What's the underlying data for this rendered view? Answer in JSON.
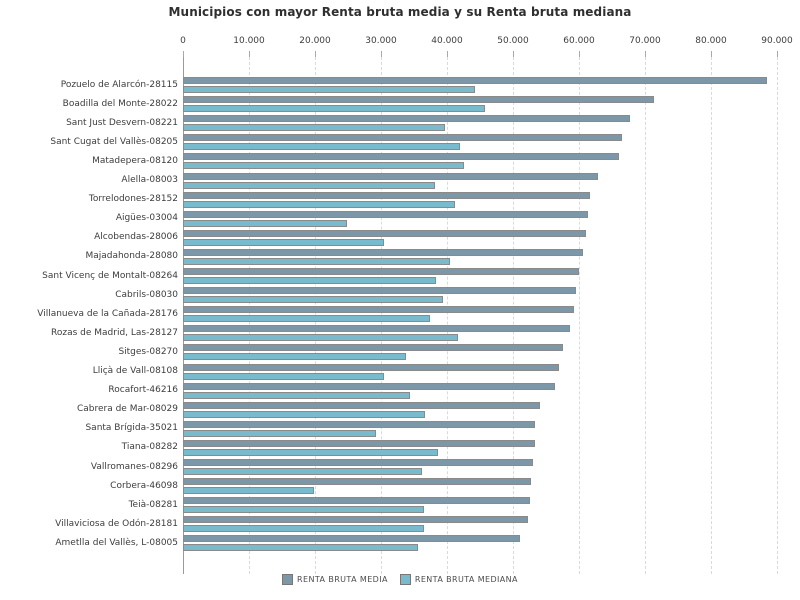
{
  "title": "Municipios con mayor Renta bruta media y su Renta bruta mediana",
  "colors": {
    "media": "#7b97a8",
    "mediana": "#7abacd",
    "bar_border": "#8a8a8a",
    "gridline": "#dadada",
    "axis_line": "#9a9a9a",
    "text": "#3d3d3d"
  },
  "legend": {
    "position": "bottom",
    "items": [
      {
        "label": "RENTA BRUTA MEDIA",
        "color_key": "media"
      },
      {
        "label": "RENTA BRUTA MEDIANA",
        "color_key": "mediana"
      }
    ]
  },
  "chart_data": {
    "type": "bar",
    "orientation": "horizontal",
    "title": "Municipios con mayor Renta bruta media y su Renta bruta mediana",
    "x_axis": {
      "position": "top",
      "min": 0,
      "max": 90000,
      "tick_interval": 10000,
      "tick_labels": [
        "0",
        "10.000",
        "20.000",
        "30.000",
        "40.000",
        "50.000",
        "60.000",
        "70.000",
        "80.000",
        "90.000"
      ],
      "grid": "vertical-dashed"
    },
    "categories": [
      "Pozuelo de Alarcón-28115",
      "Boadilla del Monte-28022",
      "Sant Just Desvern-08221",
      "Sant Cugat del Vallès-08205",
      "Matadepera-08120",
      "Alella-08003",
      "Torrelodones-28152",
      "Aigües-03004",
      "Alcobendas-28006",
      "Majadahonda-28080",
      "Sant Vicenç de Montalt-08264",
      "Cabrils-08030",
      "Villanueva de la Cañada-28176",
      "Rozas de Madrid, Las-28127",
      "Sitges-08270",
      "Lliçà de Vall-08108",
      "Rocafort-46216",
      "Cabrera de Mar-08029",
      "Santa Brígida-35021",
      "Tiana-08282",
      "Vallromanes-08296",
      "Corbera-46098",
      "Teià-08281",
      "Villaviciosa de Odón-28181",
      "Ametlla del Vallès, L-08005"
    ],
    "series": [
      {
        "name": "RENTA BRUTA MEDIA",
        "color": "#7b97a8",
        "values": [
          88200,
          71000,
          67400,
          66200,
          65700,
          62600,
          61400,
          61000,
          60700,
          60300,
          59700,
          59200,
          59000,
          58300,
          57200,
          56600,
          56000,
          53800,
          53100,
          53100,
          52700,
          52400,
          52300,
          51900,
          50700
        ]
      },
      {
        "name": "RENTA BRUTA MEDIANA",
        "color": "#7abacd",
        "values": [
          43900,
          45400,
          39400,
          41700,
          42200,
          37900,
          40900,
          24600,
          30200,
          40200,
          38100,
          39100,
          37100,
          41300,
          33500,
          30100,
          34100,
          36300,
          28900,
          38400,
          35900,
          19600,
          36200,
          36200,
          35300
        ]
      }
    ],
    "legend_position": "bottom"
  }
}
